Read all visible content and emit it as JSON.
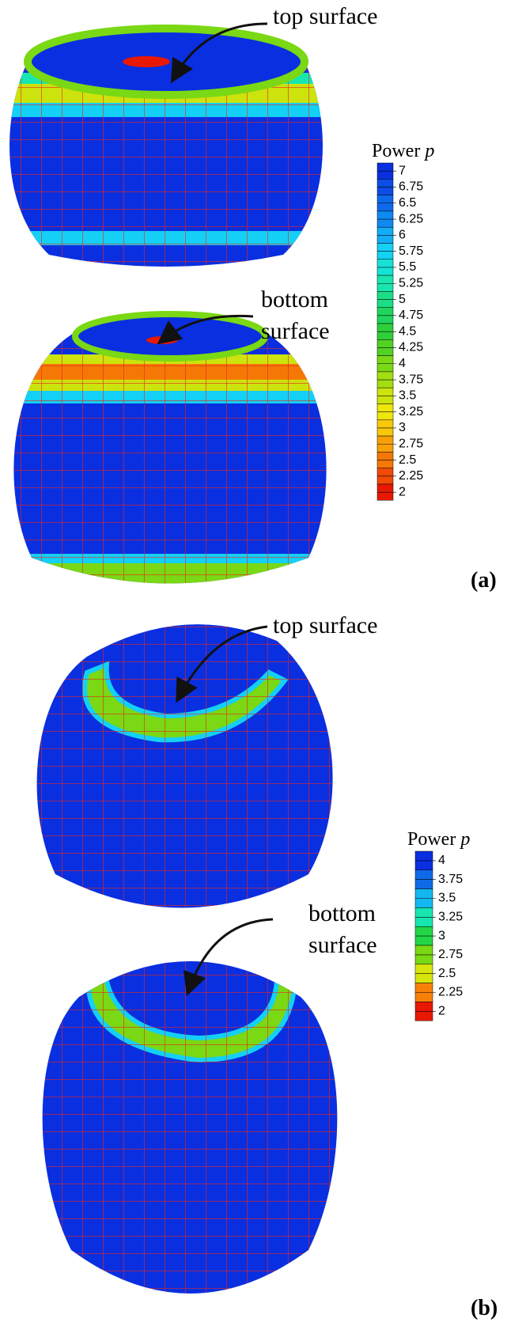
{
  "panels": [
    {
      "label": "(a)",
      "annotations": {
        "top": "top surface",
        "bottom_line1": "bottom",
        "bottom_line2": "surface"
      },
      "legend": {
        "title": "Power",
        "title_symbol": "p",
        "levels": [
          {
            "label": "7",
            "color": "#0a2fe0"
          },
          {
            "label": "6.75",
            "color": "#0b4de6"
          },
          {
            "label": "6.5",
            "color": "#0d6aec"
          },
          {
            "label": "6.25",
            "color": "#0f8af2"
          },
          {
            "label": "6",
            "color": "#12acf7"
          },
          {
            "label": "5.75",
            "color": "#14d0f5"
          },
          {
            "label": "5.5",
            "color": "#16e3d6"
          },
          {
            "label": "5.25",
            "color": "#18e6b0"
          },
          {
            "label": "5",
            "color": "#1ade86"
          },
          {
            "label": "4.75",
            "color": "#1ed65e"
          },
          {
            "label": "4.5",
            "color": "#2ecf3a"
          },
          {
            "label": "4.25",
            "color": "#52d222"
          },
          {
            "label": "4",
            "color": "#7ad814"
          },
          {
            "label": "3.75",
            "color": "#a3de10"
          },
          {
            "label": "3.5",
            "color": "#cce30e"
          },
          {
            "label": "3.25",
            "color": "#efe60c"
          },
          {
            "label": "3",
            "color": "#f8c80a"
          },
          {
            "label": "2.75",
            "color": "#f8a008"
          },
          {
            "label": "2.5",
            "color": "#f57806"
          },
          {
            "label": "2.25",
            "color": "#f04a04"
          },
          {
            "label": "2",
            "color": "#e81802"
          }
        ]
      }
    },
    {
      "label": "(b)",
      "annotations": {
        "top": "top surface",
        "bottom_line1": "bottom",
        "bottom_line2": "surface"
      },
      "legend": {
        "title": "Power",
        "title_symbol": "p",
        "levels": [
          {
            "label": "4",
            "color": "#0a2fe0"
          },
          {
            "label": "3.75",
            "color": "#0f6ae8"
          },
          {
            "label": "3.5",
            "color": "#14b8f0"
          },
          {
            "label": "3.25",
            "color": "#18e6b0"
          },
          {
            "label": "3",
            "color": "#22d648"
          },
          {
            "label": "2.75",
            "color": "#7ad814"
          },
          {
            "label": "2.5",
            "color": "#d8e40e"
          },
          {
            "label": "2.25",
            "color": "#f88008"
          },
          {
            "label": "2",
            "color": "#e81802"
          }
        ]
      }
    }
  ]
}
